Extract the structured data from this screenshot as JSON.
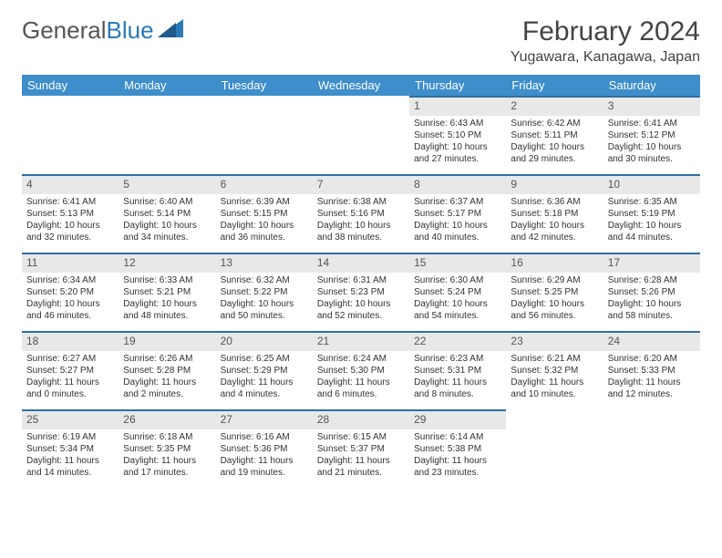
{
  "brand": {
    "part1": "General",
    "part2": "Blue"
  },
  "title": "February 2024",
  "location": "Yugawara, Kanagawa, Japan",
  "colors": {
    "header_bg": "#3d8ecb",
    "header_text": "#ffffff",
    "daynum_bg": "#e8e8e8",
    "daynum_border": "#2f6fa3",
    "logo_gray": "#555555",
    "logo_blue": "#2a7ab9",
    "body_text": "#333333"
  },
  "weekdays": [
    "Sunday",
    "Monday",
    "Tuesday",
    "Wednesday",
    "Thursday",
    "Friday",
    "Saturday"
  ],
  "first_weekday_index": 4,
  "days": [
    {
      "n": 1,
      "sunrise": "6:43 AM",
      "sunset": "5:10 PM",
      "dl_h": 10,
      "dl_m": 27
    },
    {
      "n": 2,
      "sunrise": "6:42 AM",
      "sunset": "5:11 PM",
      "dl_h": 10,
      "dl_m": 29
    },
    {
      "n": 3,
      "sunrise": "6:41 AM",
      "sunset": "5:12 PM",
      "dl_h": 10,
      "dl_m": 30
    },
    {
      "n": 4,
      "sunrise": "6:41 AM",
      "sunset": "5:13 PM",
      "dl_h": 10,
      "dl_m": 32
    },
    {
      "n": 5,
      "sunrise": "6:40 AM",
      "sunset": "5:14 PM",
      "dl_h": 10,
      "dl_m": 34
    },
    {
      "n": 6,
      "sunrise": "6:39 AM",
      "sunset": "5:15 PM",
      "dl_h": 10,
      "dl_m": 36
    },
    {
      "n": 7,
      "sunrise": "6:38 AM",
      "sunset": "5:16 PM",
      "dl_h": 10,
      "dl_m": 38
    },
    {
      "n": 8,
      "sunrise": "6:37 AM",
      "sunset": "5:17 PM",
      "dl_h": 10,
      "dl_m": 40
    },
    {
      "n": 9,
      "sunrise": "6:36 AM",
      "sunset": "5:18 PM",
      "dl_h": 10,
      "dl_m": 42
    },
    {
      "n": 10,
      "sunrise": "6:35 AM",
      "sunset": "5:19 PM",
      "dl_h": 10,
      "dl_m": 44
    },
    {
      "n": 11,
      "sunrise": "6:34 AM",
      "sunset": "5:20 PM",
      "dl_h": 10,
      "dl_m": 46
    },
    {
      "n": 12,
      "sunrise": "6:33 AM",
      "sunset": "5:21 PM",
      "dl_h": 10,
      "dl_m": 48
    },
    {
      "n": 13,
      "sunrise": "6:32 AM",
      "sunset": "5:22 PM",
      "dl_h": 10,
      "dl_m": 50
    },
    {
      "n": 14,
      "sunrise": "6:31 AM",
      "sunset": "5:23 PM",
      "dl_h": 10,
      "dl_m": 52
    },
    {
      "n": 15,
      "sunrise": "6:30 AM",
      "sunset": "5:24 PM",
      "dl_h": 10,
      "dl_m": 54
    },
    {
      "n": 16,
      "sunrise": "6:29 AM",
      "sunset": "5:25 PM",
      "dl_h": 10,
      "dl_m": 56
    },
    {
      "n": 17,
      "sunrise": "6:28 AM",
      "sunset": "5:26 PM",
      "dl_h": 10,
      "dl_m": 58
    },
    {
      "n": 18,
      "sunrise": "6:27 AM",
      "sunset": "5:27 PM",
      "dl_h": 11,
      "dl_m": 0
    },
    {
      "n": 19,
      "sunrise": "6:26 AM",
      "sunset": "5:28 PM",
      "dl_h": 11,
      "dl_m": 2
    },
    {
      "n": 20,
      "sunrise": "6:25 AM",
      "sunset": "5:29 PM",
      "dl_h": 11,
      "dl_m": 4
    },
    {
      "n": 21,
      "sunrise": "6:24 AM",
      "sunset": "5:30 PM",
      "dl_h": 11,
      "dl_m": 6
    },
    {
      "n": 22,
      "sunrise": "6:23 AM",
      "sunset": "5:31 PM",
      "dl_h": 11,
      "dl_m": 8
    },
    {
      "n": 23,
      "sunrise": "6:21 AM",
      "sunset": "5:32 PM",
      "dl_h": 11,
      "dl_m": 10
    },
    {
      "n": 24,
      "sunrise": "6:20 AM",
      "sunset": "5:33 PM",
      "dl_h": 11,
      "dl_m": 12
    },
    {
      "n": 25,
      "sunrise": "6:19 AM",
      "sunset": "5:34 PM",
      "dl_h": 11,
      "dl_m": 14
    },
    {
      "n": 26,
      "sunrise": "6:18 AM",
      "sunset": "5:35 PM",
      "dl_h": 11,
      "dl_m": 17
    },
    {
      "n": 27,
      "sunrise": "6:16 AM",
      "sunset": "5:36 PM",
      "dl_h": 11,
      "dl_m": 19
    },
    {
      "n": 28,
      "sunrise": "6:15 AM",
      "sunset": "5:37 PM",
      "dl_h": 11,
      "dl_m": 21
    },
    {
      "n": 29,
      "sunrise": "6:14 AM",
      "sunset": "5:38 PM",
      "dl_h": 11,
      "dl_m": 23
    }
  ],
  "labels": {
    "sunrise": "Sunrise:",
    "sunset": "Sunset:",
    "daylight": "Daylight:",
    "hours": "hours",
    "and": "and",
    "minutes": "minutes."
  }
}
